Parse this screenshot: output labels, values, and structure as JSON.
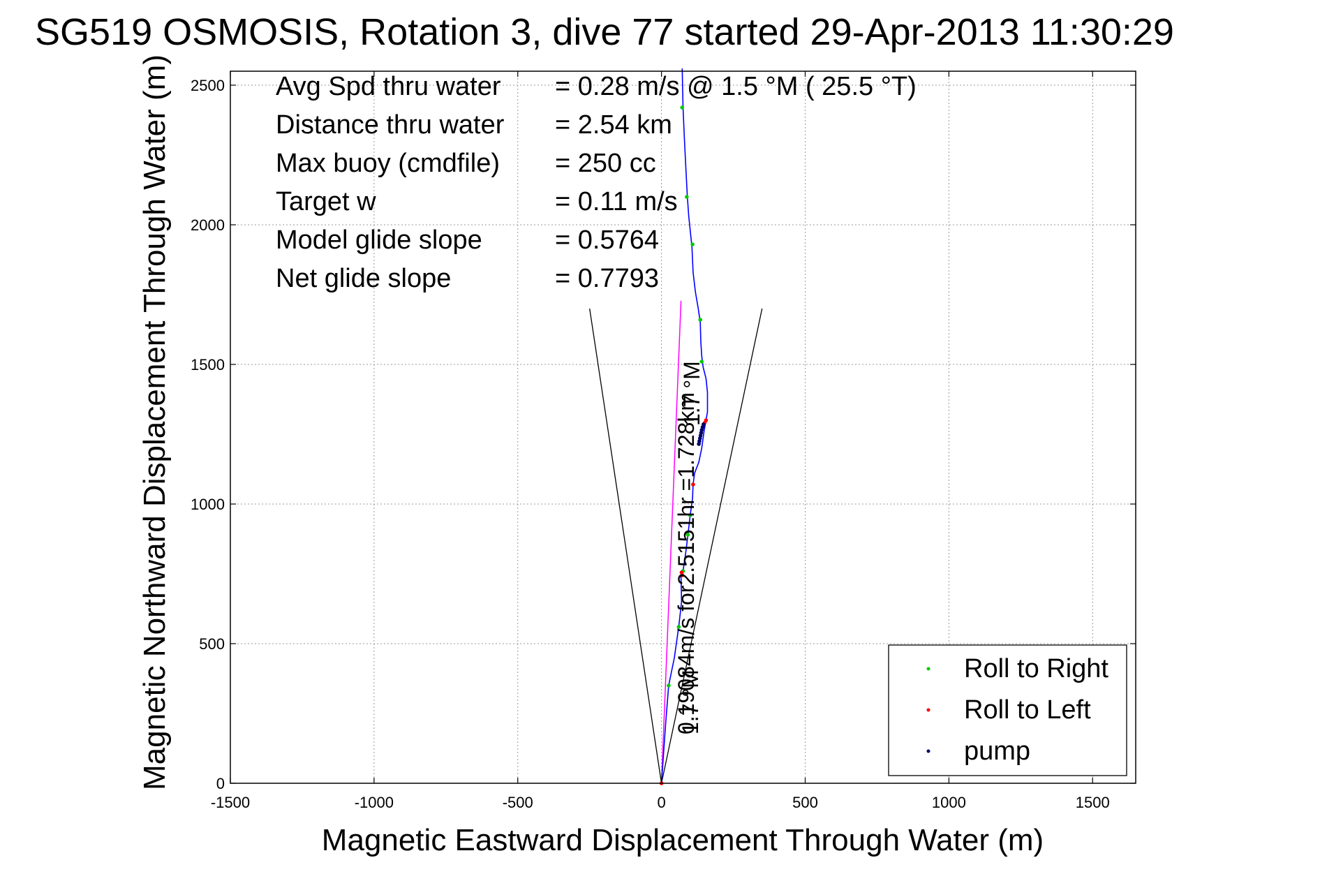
{
  "title": "SG519 OSMOSIS, Rotation 3, dive 77 started 29-Apr-2013 11:30:29",
  "chart_data": {
    "type": "line",
    "xlabel": "Magnetic Eastward Displacement Through Water (m)",
    "ylabel": "Magnetic Northward Displacement Through Water (m)",
    "xlim": [
      -1500,
      1650
    ],
    "ylim": [
      0,
      2550
    ],
    "xticks": [
      -1500,
      -1000,
      -500,
      0,
      500,
      1000,
      1500
    ],
    "yticks": [
      0,
      500,
      1000,
      1500,
      2000,
      2500
    ],
    "xtick_labels": [
      "-1500",
      "-1000",
      "-500",
      "0",
      "500",
      "1000",
      "1500"
    ],
    "ytick_labels": [
      "0",
      "500",
      "1000",
      "1500",
      "2000",
      "2500"
    ],
    "grid": true,
    "legend_position": "bottom-right",
    "info_lines": [
      {
        "label": "Avg Spd thru water",
        "value": "=  0.28 m/s @   1.5 °M ( 25.5 °T)"
      },
      {
        "label": "Distance thru water",
        "value": "=  2.54 km"
      },
      {
        "label": "Max buoy (cmdfile)",
        "value": "= 250 cc"
      },
      {
        "label": "Target w",
        "value": "= 0.11 m/s"
      },
      {
        "label": "Model glide slope",
        "value": "= 0.5764"
      },
      {
        "label": "Net glide slope",
        "value": "= 0.7793"
      }
    ],
    "annotations": [
      {
        "text": "0.19084m/s for2.5151hr =1.728km"
      },
      {
        "text": "1.7 °M"
      },
      {
        "text": "1.7 °M"
      }
    ],
    "series": [
      {
        "name": "track",
        "color": "#0000ff",
        "points": [
          [
            0,
            0
          ],
          [
            15,
            220
          ],
          [
            25,
            350
          ],
          [
            45,
            450
          ],
          [
            60,
            560
          ],
          [
            70,
            650
          ],
          [
            68,
            740
          ],
          [
            75,
            760
          ],
          [
            85,
            830
          ],
          [
            92,
            890
          ],
          [
            100,
            960
          ],
          [
            108,
            1020
          ],
          [
            110,
            1070
          ],
          [
            115,
            1110
          ],
          [
            130,
            1150
          ],
          [
            140,
            1200
          ],
          [
            148,
            1260
          ],
          [
            155,
            1300
          ],
          [
            160,
            1330
          ],
          [
            160,
            1400
          ],
          [
            155,
            1450
          ],
          [
            145,
            1490
          ],
          [
            140,
            1530
          ],
          [
            137,
            1580
          ],
          [
            135,
            1650
          ],
          [
            128,
            1700
          ],
          [
            118,
            1760
          ],
          [
            110,
            1830
          ],
          [
            106,
            1920
          ],
          [
            100,
            1980
          ],
          [
            95,
            2030
          ],
          [
            90,
            2100
          ],
          [
            85,
            2200
          ],
          [
            80,
            2300
          ],
          [
            75,
            2420
          ],
          [
            72,
            2560
          ]
        ]
      },
      {
        "name": "Roll to Right",
        "color": "#00cc00",
        "points": [
          [
            72,
            2420
          ],
          [
            88,
            2100
          ],
          [
            108,
            1930
          ],
          [
            135,
            1660
          ],
          [
            140,
            1510
          ],
          [
            100,
            960
          ],
          [
            92,
            890
          ],
          [
            75,
            760
          ],
          [
            60,
            560
          ],
          [
            25,
            350
          ]
        ]
      },
      {
        "name": "Roll to Left",
        "color": "#ff0000",
        "points": [
          [
            0,
            0
          ],
          [
            110,
            1070
          ],
          [
            70,
            755
          ],
          [
            72,
            745
          ],
          [
            155,
            1300
          ],
          [
            150,
            1290
          ]
        ]
      },
      {
        "name": "pump",
        "color": "#000066",
        "points": [
          [
            130,
            1215
          ],
          [
            132,
            1225
          ],
          [
            134,
            1235
          ],
          [
            136,
            1245
          ],
          [
            138,
            1255
          ],
          [
            140,
            1265
          ],
          [
            143,
            1275
          ],
          [
            146,
            1285
          ]
        ]
      }
    ],
    "magenta_line": [
      [
        0,
        0
      ],
      [
        68,
        1728
      ]
    ],
    "cone_lines": [
      [
        [
          0,
          0
        ],
        [
          -250,
          1700
        ]
      ],
      [
        [
          0,
          0
        ],
        [
          350,
          1700
        ]
      ]
    ],
    "legend": [
      {
        "label": "Roll to Right",
        "color": "#00cc00"
      },
      {
        "label": "Roll to Left",
        "color": "#ff0000"
      },
      {
        "label": "pump",
        "color": "#000066"
      }
    ]
  }
}
